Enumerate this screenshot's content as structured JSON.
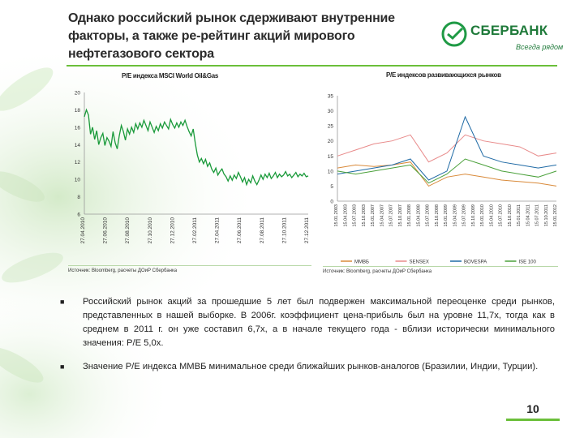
{
  "slide": {
    "title": "Однако российский рынок сдерживают внутренние факторы, а также ре-рейтинг акций мирового нефтегазового сектора",
    "page_number": "10",
    "colors": {
      "brand_green": "#1f7a3a",
      "accent_green": "#6bbf3a"
    }
  },
  "logo": {
    "name": "СБЕРБАНК",
    "slogan": "Всегда рядом",
    "icon": "sberbank-logo-icon"
  },
  "bullets": [
    "Российский рынок акций за прошедшие 5 лет был подвержен максимальной переоценке среди рынков, представленных в нашей выборке. В 2006г. коэффициент цена-прибыль был на уровне 11,7х, тогда как в среднем в 2011 г. он уже составил 6,7х, а в начале текущего года - вблизи исторически минимального значения: P/E 5,0х.",
    "Значение P/E индекса ММВБ минимальное среди ближайших рынков-аналогов (Бразилии, Индии, Турции)."
  ],
  "chart_data": [
    {
      "type": "line",
      "title": "P/E индекса MSCI World Oil&Gas",
      "source": "Источник: Bloomberg, расчеты ДОиР Сбербанка",
      "ylim": [
        6,
        20
      ],
      "yticks": [
        "6",
        "8",
        "10",
        "12",
        "14",
        "16",
        "18",
        "20"
      ],
      "xticks": [
        "27.04.2010",
        "27.06.2010",
        "27.08.2010",
        "27.10.2010",
        "27.12.2010",
        "27.02.2011",
        "27.04.2011",
        "27.06.2011",
        "27.08.2011",
        "27.10.2011",
        "27.12.2011"
      ],
      "series": [
        {
          "color": "#1a9a3a",
          "x": [
            0,
            1,
            2,
            3,
            4,
            5,
            6,
            7,
            8,
            9,
            10,
            11,
            12,
            13,
            14,
            15,
            16,
            17,
            18,
            19,
            20,
            21,
            22,
            23,
            24,
            25,
            26,
            27,
            28,
            29,
            30,
            31,
            32,
            33,
            34,
            35,
            36,
            37,
            38,
            39,
            40,
            41,
            42,
            43,
            44,
            45,
            46,
            47,
            48,
            49,
            50,
            51,
            52,
            53,
            54,
            55,
            56,
            57,
            58,
            59,
            60,
            61,
            62,
            63,
            64,
            65,
            66,
            67,
            68,
            69,
            70,
            71,
            72,
            73,
            74,
            75,
            76,
            77,
            78,
            79,
            80,
            81,
            82,
            83,
            84,
            85,
            86,
            87,
            88,
            89,
            90,
            91,
            92,
            93,
            94,
            95,
            96,
            97,
            98,
            99,
            100,
            101,
            102,
            103,
            104,
            105,
            106,
            107,
            108,
            109
          ],
          "values": [
            17.2,
            18.0,
            17.4,
            15.2,
            16.0,
            14.6,
            15.6,
            14.0,
            14.8,
            15.3,
            13.9,
            14.8,
            14.4,
            13.8,
            15.5,
            14.2,
            13.5,
            15.0,
            16.2,
            15.5,
            14.5,
            15.8,
            15.2,
            16.0,
            15.4,
            16.4,
            15.8,
            16.5,
            16.0,
            16.8,
            16.2,
            15.6,
            16.6,
            16.0,
            15.4,
            16.1,
            15.6,
            16.4,
            15.9,
            16.6,
            16.2,
            15.8,
            16.9,
            16.3,
            15.9,
            16.5,
            16.0,
            16.6,
            16.2,
            16.8,
            16.1,
            15.5,
            15.0,
            15.8,
            14.2,
            12.8,
            12.0,
            12.4,
            11.8,
            12.3,
            11.5,
            11.9,
            11.2,
            10.8,
            11.3,
            10.5,
            10.9,
            11.2,
            10.6,
            10.3,
            9.8,
            10.4,
            9.9,
            10.5,
            10.1,
            10.8,
            10.3,
            9.7,
            10.2,
            9.4,
            10.0,
            9.6,
            10.4,
            9.8,
            9.4,
            9.9,
            10.5,
            10.0,
            10.6,
            10.2,
            10.7,
            10.1,
            10.4,
            10.8,
            10.2,
            10.6,
            10.3,
            10.5,
            10.9,
            10.4,
            10.6,
            10.2,
            10.5,
            10.8,
            10.3,
            10.6,
            10.4,
            10.7,
            10.3,
            10.4
          ]
        }
      ]
    },
    {
      "type": "line",
      "title": "P/E индексов развивающихся рынков",
      "source": "Источник: Bloomberg, расчеты ДОиР Сбербанка",
      "ylim": [
        0,
        35
      ],
      "yticks": [
        "0",
        "5",
        "10",
        "15",
        "20",
        "25",
        "30",
        "35"
      ],
      "xticks": [
        "15.01.2003",
        "15.04.2003",
        "15.07.2003",
        "15.10.2003",
        "15.01.2007",
        "15.04.2007",
        "15.07.2007",
        "15.10.2007",
        "15.01.2008",
        "15.04.2008",
        "15.07.2008",
        "15.10.2008",
        "15.01.2009",
        "15.04.2009",
        "15.07.2009",
        "15.10.2009",
        "15.01.2010",
        "15.04.2010",
        "15.07.2010",
        "15.10.2010",
        "15.01.2011",
        "15.04.2011",
        "15.07.2011",
        "15.10.2011",
        "15.01.2012"
      ],
      "legend": [
        "ММВБ",
        "SENSEX",
        "BOVESPA",
        "ISE 100"
      ],
      "series": [
        {
          "name": "ММВБ",
          "color": "#d98a3a",
          "x": [
            0,
            2,
            4,
            6,
            8,
            10,
            12,
            14,
            16,
            18,
            20,
            22,
            24
          ],
          "values": [
            11,
            12,
            11.5,
            12,
            13,
            5,
            8,
            9,
            8,
            7,
            6.5,
            6,
            5
          ]
        },
        {
          "name": "SENSEX",
          "color": "#e88a8a",
          "x": [
            0,
            2,
            4,
            6,
            8,
            10,
            12,
            14,
            16,
            18,
            20,
            22,
            24
          ],
          "values": [
            15,
            17,
            19,
            20,
            22,
            13,
            16,
            22,
            20,
            19,
            18,
            15,
            16
          ]
        },
        {
          "name": "BOVESPA",
          "color": "#1f6aa5",
          "x": [
            0,
            2,
            4,
            6,
            8,
            10,
            12,
            14,
            16,
            18,
            20,
            22,
            24
          ],
          "values": [
            9,
            10,
            11,
            12,
            14,
            7,
            10,
            28,
            15,
            13,
            12,
            11,
            12
          ]
        },
        {
          "name": "ISE 100",
          "color": "#4aa03a",
          "x": [
            0,
            2,
            4,
            6,
            8,
            10,
            12,
            14,
            16,
            18,
            20,
            22,
            24
          ],
          "values": [
            10,
            9,
            10,
            11,
            12,
            6,
            9,
            14,
            12,
            10,
            9,
            8,
            10
          ]
        }
      ]
    }
  ]
}
